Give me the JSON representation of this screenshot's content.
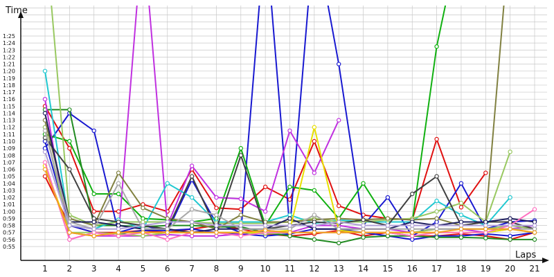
{
  "chart_data": {
    "type": "line",
    "ylabel": "Time",
    "xlabel": "Laps",
    "y_unit": "minutes:seconds",
    "ylim": [
      "0:55",
      "1:29"
    ],
    "y_ticks": [
      "0:55",
      "0:56",
      "0:57",
      "0:58",
      "0:59",
      "1:00",
      "1:01",
      "1:02",
      "1:03",
      "1:04",
      "1:05",
      "1:06",
      "1:07",
      "1:08",
      "1:09",
      "1:10",
      "1:11",
      "1:12",
      "1:13",
      "1:14",
      "1:15",
      "1:16",
      "1:17",
      "1:18",
      "1:19",
      "1:20",
      "1:21",
      "1:22",
      "1:23",
      "1:24",
      "1:25"
    ],
    "x": [
      1,
      2,
      3,
      4,
      5,
      6,
      7,
      8,
      9,
      10,
      11,
      12,
      13,
      14,
      15,
      16,
      17,
      18,
      19,
      20,
      21
    ],
    "grid": true,
    "legend": "none",
    "series": [
      {
        "color": "#e01010",
        "values": [
          75,
          69,
          60,
          60,
          61,
          60,
          66,
          60.5,
          60.3,
          63.5,
          61.7,
          70,
          60.8,
          59.5,
          59,
          58.8,
          70.3,
          60.6,
          65.5,
          null,
          null
        ]
      },
      {
        "color": "#e01010",
        "values": [
          65,
          58,
          57,
          57,
          57.3,
          57,
          57.5,
          58,
          57.5,
          56.8,
          56.5,
          56.8,
          57.3,
          56.5,
          57,
          56.5,
          56.5,
          56.8,
          56.5,
          56,
          57
        ]
      },
      {
        "color": "#1818d0",
        "values": [
          69,
          74,
          71.5,
          57,
          58,
          57.2,
          64.5,
          58.3,
          57,
          100,
          57.5,
          100,
          81,
          58,
          62,
          56.5,
          58.5,
          64,
          57.5,
          58.5,
          58.7
        ]
      },
      {
        "color": "#1818d0",
        "values": [
          70,
          58,
          57,
          56.8,
          57.3,
          57.3,
          57.5,
          57,
          56.8,
          56.5,
          56.8,
          57.5,
          57.5,
          57,
          56.5,
          56,
          56.5,
          56.5,
          56.8,
          56.5,
          57
        ]
      },
      {
        "color": "#10b010",
        "values": [
          71,
          70,
          62.5,
          62.5,
          59,
          58.8,
          58.5,
          59,
          69,
          58,
          63.5,
          63,
          59,
          64,
          58.5,
          58.5,
          83.5,
          100,
          null,
          null,
          null
        ]
      },
      {
        "color": "#208a20",
        "values": [
          74.5,
          74.5,
          58,
          58,
          57.8,
          58,
          58,
          57.8,
          57.8,
          57,
          56.5,
          56,
          55.5,
          56.3,
          56.5,
          56.5,
          56.3,
          56.3,
          56.2,
          56,
          56
        ]
      },
      {
        "color": "#c030e0",
        "values": [
          72,
          57,
          56.5,
          56.5,
          100,
          58,
          66.5,
          62,
          61.8,
          60,
          71.5,
          65.5,
          73,
          null,
          null,
          null,
          null,
          null,
          null,
          null,
          null
        ]
      },
      {
        "color": "#c030e0",
        "values": [
          76,
          56,
          57,
          56.5,
          56.5,
          56.7,
          56.5,
          56.5,
          56.8,
          57.3,
          57,
          58,
          58,
          57.5,
          57.5,
          57,
          57.5,
          57.5,
          57,
          57.5,
          58
        ]
      },
      {
        "color": "#20c8d0",
        "values": [
          80,
          58,
          57.5,
          58.8,
          57.5,
          64,
          62,
          58.5,
          58.5,
          58.5,
          59.5,
          58.3,
          58.8,
          58.5,
          58.5,
          58.5,
          61.5,
          59.5,
          58,
          62,
          null
        ]
      },
      {
        "color": "#98c860",
        "values": [
          100,
          59.5,
          58,
          58.5,
          58.5,
          58.5,
          58.5,
          58.3,
          58.3,
          58.3,
          58.5,
          59,
          58.5,
          58.5,
          58.8,
          59,
          60,
          61.2,
          58.5,
          68.5,
          null
        ]
      },
      {
        "color": "#98c860",
        "values": [
          72,
          57,
          57,
          56.8,
          56.5,
          57,
          57,
          57,
          57,
          56.8,
          57,
          57,
          57,
          57,
          57,
          57,
          57.5,
          57.5,
          57.5,
          58,
          57.5
        ]
      },
      {
        "color": "#808040",
        "values": [
          73,
          59,
          58,
          65.5,
          60.5,
          59,
          58.5,
          57.5,
          59.5,
          58.5,
          58.5,
          58.8,
          59,
          58.8,
          59,
          58.8,
          59,
          58,
          58.5,
          100,
          null
        ]
      },
      {
        "color": "#404040",
        "values": [
          70.5,
          66,
          59,
          58.5,
          58,
          57.5,
          65,
          57.5,
          68,
          57.5,
          58,
          58.5,
          58.3,
          58.8,
          58,
          62.5,
          65,
          58,
          58.5,
          58.5,
          57.5
        ]
      },
      {
        "color": "#202060",
        "values": [
          74,
          58.5,
          58.5,
          58,
          57.5,
          57.5,
          57,
          57.5,
          57.5,
          57.5,
          59,
          57.5,
          57.5,
          57.5,
          57.5,
          58.5,
          58,
          58.5,
          58.5,
          59,
          58.5
        ]
      },
      {
        "color": "#e8e000",
        "values": [
          66.5,
          57,
          56.5,
          57,
          57,
          57,
          57,
          57,
          57,
          57,
          57.3,
          72,
          57.3,
          57,
          57,
          57,
          57,
          57,
          57,
          57.5,
          57
        ]
      },
      {
        "color": "#ff70c0",
        "values": [
          67,
          56,
          57,
          56.5,
          57,
          56,
          57,
          57,
          56.5,
          57,
          57,
          57,
          57,
          57,
          57,
          56.5,
          57,
          57,
          57,
          58,
          60.3
        ]
      },
      {
        "color": "#a8a8a8",
        "values": [
          71.5,
          58.5,
          57.5,
          64,
          57.5,
          57.5,
          60.3,
          59.5,
          57.5,
          57.5,
          57.5,
          59.5,
          57.5,
          57.5,
          57.5,
          57.5,
          57.5,
          57.5,
          57.5,
          57.5,
          57.5
        ]
      },
      {
        "color": "#b0a0d8",
        "values": [
          68.5,
          58,
          57.5,
          57.5,
          58,
          58.5,
          58.5,
          58,
          58,
          58,
          58,
          58,
          58.5,
          58,
          58,
          58,
          58,
          58,
          58,
          58,
          58
        ]
      },
      {
        "color": "#f0a020",
        "values": [
          66,
          57,
          56.5,
          57,
          57,
          57,
          57,
          57,
          57,
          57.3,
          57,
          57,
          57,
          57,
          57,
          57,
          57,
          57.5,
          57.5,
          57.5,
          57
        ]
      }
    ]
  }
}
